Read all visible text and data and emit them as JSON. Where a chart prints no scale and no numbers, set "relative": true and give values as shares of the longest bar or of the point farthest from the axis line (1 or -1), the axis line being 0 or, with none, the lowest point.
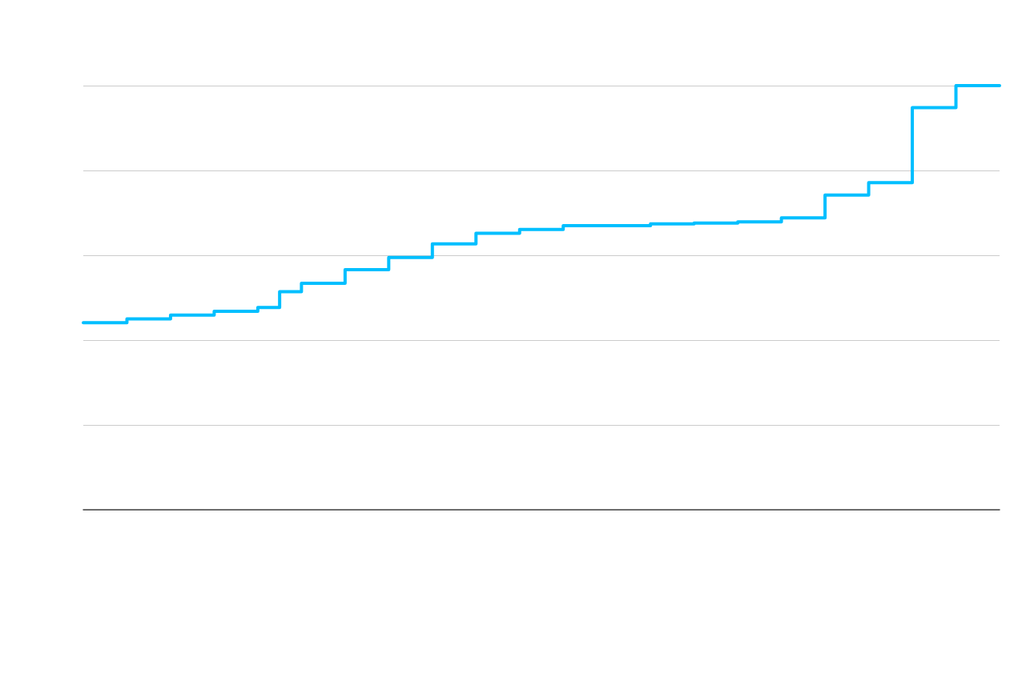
{
  "chart_data": {
    "type": "step",
    "relative": true,
    "categories": [
      null,
      null,
      null,
      null,
      null,
      null,
      null,
      null,
      null,
      null,
      null,
      null,
      null,
      null,
      null,
      null,
      null,
      null,
      null,
      null,
      null,
      null,
      null,
      null,
      null,
      null,
      null,
      null,
      null,
      null,
      null,
      null,
      null,
      null,
      null,
      null,
      null,
      null,
      null,
      null,
      null,
      null,
      null
    ],
    "values": [
      0.441,
      0.441,
      0.45,
      0.45,
      0.459,
      0.459,
      0.468,
      0.468,
      0.477,
      0.514,
      0.534,
      0.534,
      0.566,
      0.566,
      0.595,
      0.595,
      0.627,
      0.627,
      0.652,
      0.652,
      0.661,
      0.661,
      0.67,
      0.67,
      0.67,
      0.67,
      0.674,
      0.674,
      0.676,
      0.676,
      0.679,
      0.679,
      0.688,
      0.688,
      0.742,
      0.742,
      0.771,
      0.771,
      0.948,
      0.948,
      1,
      1,
      1
    ],
    "color": "#00bfff",
    "grid": "y",
    "marker": "none",
    "line_style": "solid",
    "tick_labels": false
  }
}
